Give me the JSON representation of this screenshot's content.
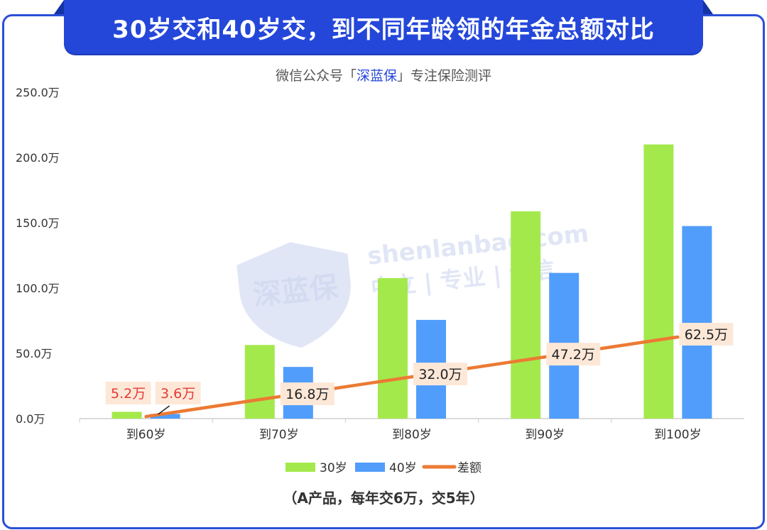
{
  "header": {
    "title": "30岁交和40岁交，到不同年龄领的年金总额对比",
    "subtitle_pre": "微信公众号「",
    "subtitle_brand": "深蓝保",
    "subtitle_post": "」专注保险测评"
  },
  "watermark": {
    "logo_text": "深蓝保",
    "site": "shenlanbao.com",
    "tagline": "中立 | 专业 | 诚信"
  },
  "footnote": "（A产品，每年交6万，交5年）",
  "colors": {
    "banner": "#2447d9",
    "series_30": "#a4e94c",
    "series_40": "#519dfb",
    "diff_line": "#ec7a33",
    "label_bg": "#fde8d8",
    "red_label": "#e53935"
  },
  "chart_data": {
    "type": "bar",
    "categories": [
      "到60岁",
      "到70岁",
      "到80岁",
      "到90岁",
      "到100岁"
    ],
    "series": [
      {
        "name": "30岁",
        "type": "bar",
        "values": [
          5.2,
          56.4,
          107.6,
          158.8,
          210.0
        ]
      },
      {
        "name": "40岁",
        "type": "bar",
        "values": [
          3.6,
          39.6,
          75.6,
          111.6,
          147.5
        ]
      },
      {
        "name": "差额",
        "type": "line",
        "values": [
          1.6,
          16.8,
          32.0,
          47.2,
          62.5
        ]
      }
    ],
    "data_labels": {
      "first_bar_30": "5.2万",
      "first_bar_40": "3.6万",
      "diff": [
        "16.8万",
        "32.0万",
        "47.2万",
        "62.5万"
      ]
    },
    "y_ticks": [
      "0.0万",
      "50.0万",
      "100.0万",
      "150.0万",
      "200.0万",
      "250.0万"
    ],
    "ylim": [
      0,
      250
    ],
    "legend_position": "bottom"
  }
}
